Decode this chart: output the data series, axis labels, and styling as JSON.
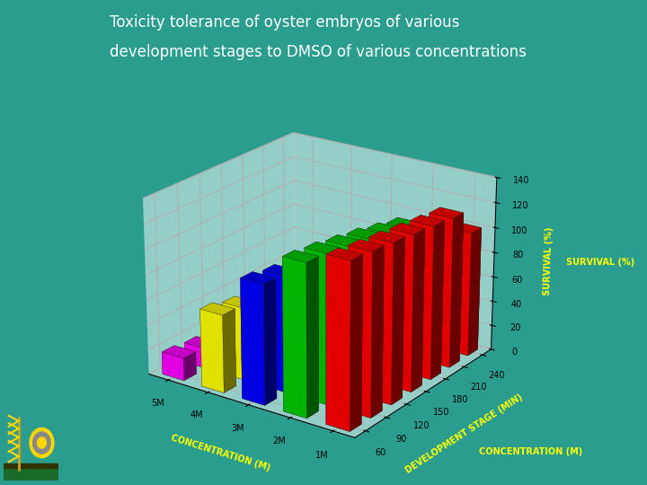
{
  "title_line1": "Toxicity tolerance of oyster embryos of various",
  "title_line2": "development stages to DMSO of various concentrations",
  "title_color": "#FFFFFF",
  "background_color": "#2a9d8f",
  "left_stripe_color": "#1a6b5a",
  "xlabel": "DEVELOPMENT STAGE (MIN)",
  "ylabel": "CONCENTRATION (M)",
  "zlabel": "SURVIVAL (%)",
  "xlabel_color": "#FFFF00",
  "ylabel_color": "#FFFF00",
  "zlabel_color": "#FFFF00",
  "dev_stages": [
    60,
    90,
    120,
    150,
    180,
    210,
    240
  ],
  "concentrations": [
    "1M",
    "2M",
    "3M",
    "4M",
    "5M"
  ],
  "bar_colors": [
    "#FF0000",
    "#00CC00",
    "#0000FF",
    "#FFFF00",
    "#FF00FF"
  ],
  "survival_data": [
    [
      130,
      128,
      126,
      124,
      122,
      120,
      100
    ],
    [
      120,
      118,
      115,
      112,
      108,
      104,
      88
    ],
    [
      95,
      92,
      90,
      87,
      83,
      78,
      70
    ],
    [
      62,
      58,
      53,
      48,
      43,
      38,
      32
    ],
    [
      18,
      16,
      15,
      13,
      12,
      11,
      9
    ]
  ],
  "zlim": [
    0,
    140
  ],
  "zticks": [
    0,
    20,
    40,
    60,
    80,
    100,
    120,
    140
  ],
  "wall_color": "#FFFFFF",
  "tick_color": "#000000",
  "figsize": [
    7.2,
    5.4
  ],
  "dpi": 100,
  "elev": 22,
  "azim": -55
}
